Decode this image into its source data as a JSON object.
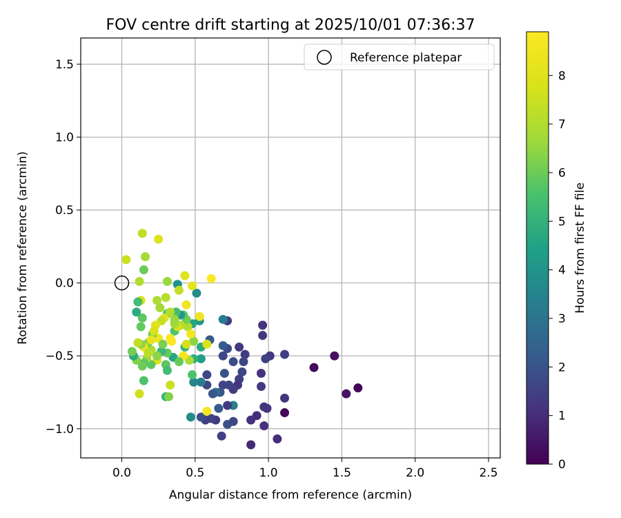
{
  "chart_data": {
    "type": "scatter",
    "title": "FOV centre drift starting at 2025/10/01 07:36:37",
    "xlabel": "Angular distance from reference (arcmin)",
    "ylabel": "Rotation from reference (arcmin)",
    "xlim": [
      -0.28,
      2.58
    ],
    "ylim": [
      -1.2,
      1.68
    ],
    "xticks": [
      0.0,
      0.5,
      1.0,
      1.5,
      2.0,
      2.5
    ],
    "xtick_labels": [
      "0.0",
      "0.5",
      "1.0",
      "1.5",
      "2.0",
      "2.5"
    ],
    "yticks": [
      1.5,
      1.0,
      0.5,
      0.0,
      -0.5,
      -1.0
    ],
    "ytick_labels": [
      "1.5",
      "1.0",
      "0.5",
      "0.0",
      "−0.5",
      "−1.0"
    ],
    "grid": true,
    "legend": {
      "position": "top-right",
      "entries": [
        "Reference platepar"
      ]
    },
    "reference_point": {
      "x": 0.0,
      "y": 0.0,
      "label": "Reference platepar"
    },
    "colorbar": {
      "label": "Hours from first FF file",
      "range": [
        0,
        8.9
      ],
      "ticks": [
        0,
        1,
        2,
        3,
        4,
        5,
        6,
        7,
        8
      ],
      "tick_labels": [
        "0",
        "1",
        "2",
        "3",
        "4",
        "5",
        "6",
        "7",
        "8"
      ],
      "colormap": "viridis"
    },
    "points": [
      [
        1.61,
        -0.72,
        0.1
      ],
      [
        1.53,
        -0.76,
        0.4
      ],
      [
        1.45,
        -0.5,
        0.3
      ],
      [
        1.31,
        -0.58,
        0.2
      ],
      [
        1.11,
        -0.89,
        0.1
      ],
      [
        1.11,
        -0.79,
        1.2
      ],
      [
        1.11,
        -0.49,
        1.4
      ],
      [
        1.06,
        -1.07,
        1.0
      ],
      [
        1.01,
        -0.5,
        1.3
      ],
      [
        0.98,
        -0.52,
        1.5
      ],
      [
        0.96,
        -0.29,
        1.2
      ],
      [
        0.96,
        -0.36,
        1.3
      ],
      [
        0.95,
        -0.62,
        1.1
      ],
      [
        0.95,
        -0.71,
        1.3
      ],
      [
        0.97,
        -0.85,
        1.2
      ],
      [
        0.99,
        -0.86,
        1.2
      ],
      [
        0.97,
        -0.98,
        1.1
      ],
      [
        0.92,
        -0.91,
        1.0
      ],
      [
        0.88,
        -0.94,
        1.1
      ],
      [
        0.88,
        -1.11,
        0.9
      ],
      [
        0.84,
        -0.49,
        1.4
      ],
      [
        0.83,
        -0.54,
        1.6
      ],
      [
        0.82,
        -0.61,
        1.7
      ],
      [
        0.8,
        -0.44,
        1.3
      ],
      [
        0.8,
        -0.66,
        1.5
      ],
      [
        0.79,
        -0.7,
        1.2
      ],
      [
        0.76,
        -0.54,
        1.8
      ],
      [
        0.76,
        -0.73,
        1.4
      ],
      [
        0.76,
        -0.84,
        3.3
      ],
      [
        0.72,
        -0.26,
        1.4
      ],
      [
        0.72,
        -0.45,
        1.7
      ],
      [
        0.73,
        -0.7,
        1.6
      ],
      [
        0.72,
        -0.84,
        1.3
      ],
      [
        0.72,
        -0.97,
        1.9
      ],
      [
        0.76,
        -0.95,
        1.7
      ],
      [
        0.69,
        -0.25,
        3.3
      ],
      [
        0.69,
        -0.43,
        2.2
      ],
      [
        0.69,
        -0.5,
        1.7
      ],
      [
        0.7,
        -0.62,
        2.0
      ],
      [
        0.69,
        -0.7,
        1.6
      ],
      [
        0.67,
        -0.75,
        2.0
      ],
      [
        0.68,
        -1.05,
        1.5
      ],
      [
        0.66,
        -0.86,
        2.2
      ],
      [
        0.64,
        -0.75,
        2.7
      ],
      [
        0.64,
        -0.94,
        1.3
      ],
      [
        0.62,
        -0.76,
        2.1
      ],
      [
        0.6,
        -0.39,
        2.2
      ],
      [
        0.58,
        -0.63,
        1.6
      ],
      [
        0.58,
        -0.7,
        1.7
      ],
      [
        0.61,
        -0.93,
        1.6
      ],
      [
        0.57,
        -0.94,
        1.5
      ],
      [
        0.54,
        -0.92,
        1.9
      ],
      [
        0.54,
        -0.68,
        3.3
      ],
      [
        0.54,
        -0.52,
        4.4
      ],
      [
        0.54,
        -0.44,
        4.8
      ],
      [
        0.53,
        -0.26,
        4.1
      ],
      [
        0.51,
        -0.07,
        3.8
      ],
      [
        0.48,
        -0.28,
        4.6
      ],
      [
        0.49,
        -0.52,
        4.9
      ],
      [
        0.49,
        -0.68,
        3.6
      ],
      [
        0.47,
        -0.92,
        3.8
      ],
      [
        0.48,
        -0.63,
        5.6
      ],
      [
        0.49,
        -0.4,
        6.4
      ],
      [
        0.46,
        -0.53,
        6.9
      ],
      [
        0.45,
        -0.3,
        7.0
      ],
      [
        0.44,
        -0.25,
        6.1
      ],
      [
        0.43,
        -0.44,
        5.1
      ],
      [
        0.42,
        -0.22,
        5.8
      ],
      [
        0.4,
        -0.22,
        4.2
      ],
      [
        0.4,
        -0.29,
        7.1
      ],
      [
        0.42,
        -0.5,
        8.6
      ],
      [
        0.38,
        -0.01,
        4.0
      ],
      [
        0.37,
        -0.2,
        5.4
      ],
      [
        0.36,
        -0.33,
        5.6
      ],
      [
        0.35,
        -0.51,
        4.6
      ],
      [
        0.33,
        -0.38,
        8.8
      ],
      [
        0.31,
        -0.21,
        5.6
      ],
      [
        0.31,
        -0.48,
        5.9
      ],
      [
        0.3,
        -0.56,
        5.8
      ],
      [
        0.31,
        -0.6,
        5.4
      ],
      [
        0.3,
        -0.78,
        5.1
      ],
      [
        0.32,
        -0.78,
        6.3
      ],
      [
        0.33,
        -0.7,
        7.5
      ],
      [
        0.29,
        -0.24,
        8.1
      ],
      [
        0.27,
        -0.26,
        7.4
      ],
      [
        0.27,
        -0.47,
        5.2
      ],
      [
        0.25,
        -0.38,
        8.4
      ],
      [
        0.24,
        -0.53,
        8.0
      ],
      [
        0.23,
        -0.29,
        8.0
      ],
      [
        0.24,
        -0.12,
        6.9
      ],
      [
        0.21,
        -0.35,
        6.0
      ],
      [
        0.2,
        -0.46,
        6.9
      ],
      [
        0.2,
        -0.56,
        5.8
      ],
      [
        0.18,
        -0.41,
        6.2
      ],
      [
        0.17,
        -0.52,
        6.6
      ],
      [
        0.15,
        -0.44,
        8.2
      ],
      [
        0.15,
        -0.55,
        5.8
      ],
      [
        0.14,
        -0.24,
        5.8
      ],
      [
        0.13,
        -0.3,
        5.9
      ],
      [
        0.13,
        -0.42,
        6.4
      ],
      [
        0.14,
        -0.57,
        6.0
      ],
      [
        0.15,
        -0.67,
        5.6
      ],
      [
        0.12,
        -0.76,
        7.6
      ],
      [
        0.13,
        -0.12,
        7.8
      ],
      [
        0.11,
        -0.13,
        5.4
      ],
      [
        0.1,
        -0.2,
        4.8
      ],
      [
        0.11,
        -0.41,
        7.3
      ],
      [
        0.1,
        -0.53,
        6.3
      ],
      [
        0.08,
        -0.5,
        4.8
      ],
      [
        0.07,
        -0.47,
        6.1
      ],
      [
        0.12,
        0.01,
        7.0
      ],
      [
        0.15,
        0.09,
        6.0
      ],
      [
        0.16,
        0.18,
        6.8
      ],
      [
        0.14,
        0.34,
        7.3
      ],
      [
        0.25,
        0.3,
        7.9
      ],
      [
        0.03,
        0.16,
        7.5
      ],
      [
        0.31,
        0.01,
        6.6
      ],
      [
        0.39,
        -0.05,
        7.4
      ],
      [
        0.43,
        0.05,
        8.0
      ],
      [
        0.48,
        -0.02,
        8.2
      ],
      [
        0.61,
        0.03,
        8.8
      ],
      [
        0.58,
        -0.42,
        7.9
      ],
      [
        0.58,
        -0.88,
        8.6
      ],
      [
        0.53,
        -0.23,
        8.4
      ],
      [
        0.44,
        -0.15,
        8.5
      ],
      [
        0.47,
        -0.35,
        8.6
      ],
      [
        0.38,
        -0.3,
        7.7
      ],
      [
        0.34,
        -0.4,
        8.9
      ],
      [
        0.36,
        -0.28,
        6.7
      ],
      [
        0.3,
        -0.1,
        7.1
      ],
      [
        0.22,
        -0.33,
        7.8
      ],
      [
        0.26,
        -0.17,
        6.8
      ],
      [
        0.33,
        -0.2,
        7.0
      ],
      [
        0.2,
        -0.39,
        8.3
      ],
      [
        0.44,
        -0.42,
        7.7
      ],
      [
        0.39,
        -0.54,
        5.9
      ],
      [
        0.36,
        -0.25,
        6.6
      ],
      [
        0.28,
        -0.42,
        6.2
      ],
      [
        0.24,
        -0.5,
        6.4
      ],
      [
        0.18,
        -0.48,
        7.2
      ]
    ]
  }
}
